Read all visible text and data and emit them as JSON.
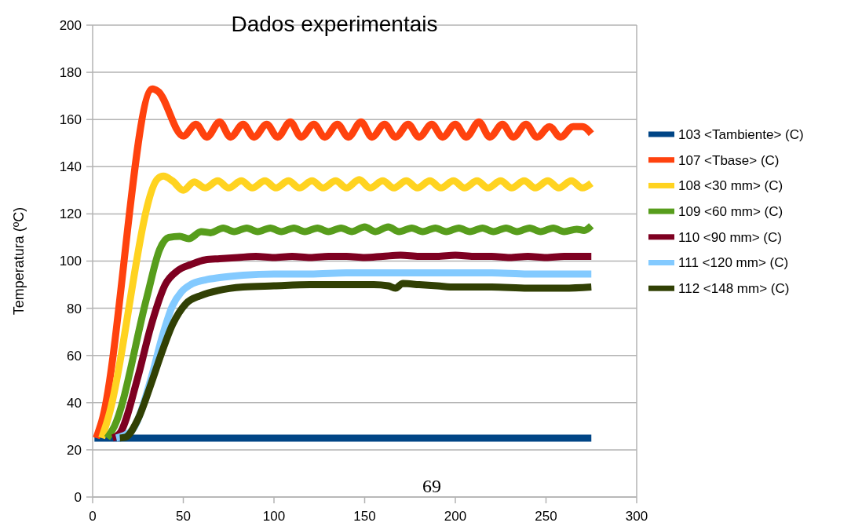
{
  "chart_data": {
    "type": "line",
    "title": "Dados experimentais",
    "ylabel": "Temperatura (ºC)",
    "xlim": [
      0,
      300
    ],
    "xticks": [
      0,
      50,
      100,
      150,
      200,
      250,
      300
    ],
    "ylim": [
      0,
      200
    ],
    "yticks": [
      0,
      20,
      40,
      60,
      80,
      100,
      120,
      140,
      160,
      180,
      200
    ],
    "grid": "y",
    "legend": "right",
    "marker": "none",
    "line_style": "solid",
    "annotations": [
      "69"
    ],
    "series": [
      {
        "name": "103 <Tambiente> (C)",
        "color": "#004586",
        "x": [
          1,
          50,
          100,
          150,
          200,
          250,
          275
        ],
        "values": [
          25,
          25,
          25,
          25,
          25,
          25,
          25
        ]
      },
      {
        "name": "107 <Tbase> (C)",
        "color": "#ff420e",
        "x": [
          2,
          5,
          33,
          36,
          50,
          57,
          63,
          70,
          76,
          83,
          89,
          96,
          102,
          109,
          115,
          122,
          128,
          135,
          141,
          148,
          154,
          161,
          167,
          174,
          180,
          187,
          193,
          200,
          206,
          213,
          219,
          226,
          232,
          239,
          245,
          252,
          258,
          265,
          270,
          275
        ],
        "values": [
          25,
          32,
          173,
          172,
          153,
          158,
          152.5,
          159,
          152.5,
          158,
          152.5,
          158,
          152.5,
          159,
          152.5,
          158,
          152.5,
          158,
          152.5,
          159,
          152.5,
          158,
          152.5,
          158,
          152.5,
          158,
          152.5,
          158,
          152.5,
          159,
          152.5,
          158,
          152.5,
          158,
          152.5,
          157,
          152.5,
          157,
          157,
          154
        ]
      },
      {
        "name": "108 <30 mm> (C)",
        "color": "#ffd320",
        "x": [
          5,
          8,
          36,
          39,
          44,
          50,
          56,
          62,
          69,
          75,
          82,
          88,
          95,
          101,
          108,
          114,
          121,
          127,
          134,
          140,
          147,
          153,
          160,
          166,
          173,
          179,
          186,
          192,
          199,
          205,
          212,
          218,
          225,
          231,
          238,
          244,
          251,
          257,
          264,
          270,
          275
        ],
        "values": [
          25,
          32,
          135,
          136,
          134,
          130,
          133.5,
          131,
          134,
          131,
          134,
          131,
          134,
          131,
          134,
          131,
          134,
          131,
          134,
          131,
          134.5,
          131,
          134,
          131,
          134,
          131,
          134,
          131,
          134,
          131,
          134,
          131,
          134,
          131,
          134,
          131,
          134,
          131,
          134,
          131,
          133
        ]
      },
      {
        "name": "109 <60 mm> (C)",
        "color": "#579d1c",
        "x": [
          8,
          12,
          30,
          37,
          42,
          48,
          53,
          60,
          65,
          72,
          78,
          85,
          91,
          98,
          104,
          111,
          117,
          124,
          130,
          137,
          143,
          150,
          156,
          163,
          169,
          176,
          182,
          189,
          195,
          202,
          208,
          215,
          221,
          228,
          234,
          241,
          247,
          254,
          260,
          267,
          271,
          275
        ],
        "values": [
          25,
          30,
          85,
          105,
          110,
          110.5,
          109.5,
          112.5,
          112,
          114,
          112.5,
          114,
          112.5,
          114,
          112.5,
          114,
          112.5,
          114,
          112.5,
          114,
          112.5,
          114.5,
          112.5,
          114.5,
          112.5,
          114,
          112.5,
          114,
          112.5,
          114,
          112.5,
          114,
          112.5,
          114,
          112.5,
          114,
          112.5,
          114,
          112.5,
          113.5,
          113,
          115
        ]
      },
      {
        "name": "110 <90 mm> (C)",
        "color": "#7e0021",
        "x": [
          11,
          15,
          25,
          32,
          40,
          47,
          54,
          62,
          70,
          80,
          90,
          100,
          110,
          120,
          130,
          140,
          150,
          160,
          170,
          180,
          190,
          200,
          210,
          220,
          230,
          240,
          250,
          260,
          275
        ],
        "values": [
          25,
          27,
          51,
          72,
          90,
          96,
          98.5,
          100.5,
          101,
          101.5,
          102,
          101.5,
          102,
          101.5,
          102,
          102,
          101.5,
          102,
          102.5,
          102,
          102,
          102.5,
          102,
          102,
          101.5,
          102,
          101.5,
          102,
          102
        ]
      },
      {
        "name": "111 <120 mm> (C)",
        "color": "#83caff",
        "x": [
          13,
          17,
          22.5,
          32.5,
          38,
          44,
          49,
          54,
          62,
          70,
          83,
          100,
          120,
          140,
          160,
          180,
          200,
          220,
          240,
          260,
          275
        ],
        "values": [
          25,
          26,
          29,
          51,
          67,
          81,
          87,
          90,
          92,
          93,
          94,
          94.5,
          94.5,
          95,
          95,
          95,
          95,
          95,
          94.5,
          94.5,
          94.5
        ]
      },
      {
        "name": "112 <148 mm> (C)",
        "color": "#314004",
        "x": [
          15,
          18,
          25,
          32.5,
          38,
          44,
          51.5,
          60,
          69,
          83,
          100,
          120,
          140,
          155,
          163,
          167,
          171,
          180,
          190,
          200,
          220,
          240,
          260,
          275
        ],
        "values": [
          25,
          25.3,
          33,
          48.6,
          61,
          73,
          82,
          85.5,
          87.5,
          89,
          89.5,
          90,
          90,
          90,
          89.5,
          88.5,
          90.5,
          90,
          89.5,
          89,
          89,
          88.5,
          88.5,
          89
        ]
      }
    ]
  }
}
